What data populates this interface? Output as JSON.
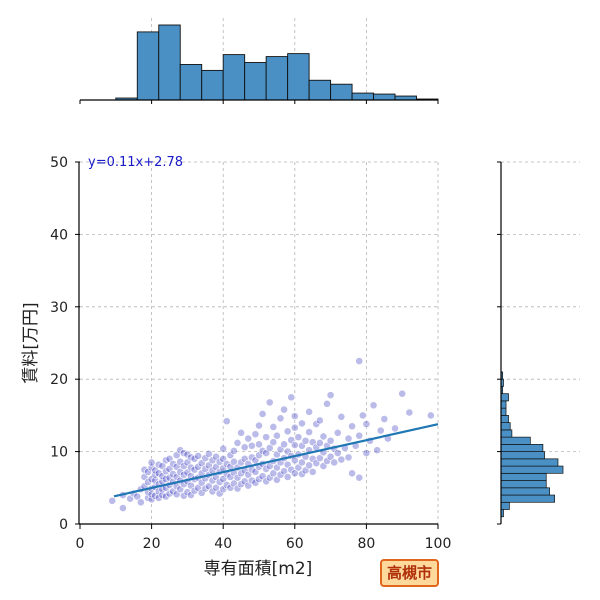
{
  "badge": "高槻市",
  "chart_data": {
    "type": "scatter",
    "xlabel": "専有面積[m2]",
    "ylabel": "賃料[万円]",
    "xlim": [
      0,
      100
    ],
    "ylim": [
      0,
      50
    ],
    "xticks": [
      0,
      20,
      40,
      60,
      80,
      100
    ],
    "yticks": [
      0,
      10,
      20,
      30,
      40,
      50
    ],
    "grid": true,
    "regression": {
      "label": "y=0.11x+2.78",
      "slope": 0.11,
      "intercept": 2.78,
      "x_range": [
        9.5,
        100
      ]
    },
    "colors": {
      "points": "#2b2bbf",
      "fit": "#1f77b4",
      "hist": "#4a90c4"
    },
    "marginal_x_hist": {
      "bin_edges": [
        10,
        16,
        22,
        28,
        34,
        40,
        46,
        52,
        58,
        64,
        70,
        76,
        82,
        88,
        94,
        100
      ],
      "counts": [
        2,
        69,
        76,
        36,
        30,
        46,
        38,
        44,
        47,
        20,
        16,
        7,
        6,
        4,
        1
      ]
    },
    "marginal_y_hist": {
      "bin_edges": [
        1,
        2,
        3,
        4,
        5,
        6,
        7,
        8,
        9,
        10,
        11,
        12,
        13,
        14,
        15,
        16,
        17,
        18,
        19,
        20,
        21,
        22,
        23
      ],
      "counts": [
        3,
        10,
        64,
        58,
        54,
        54,
        74,
        68,
        52,
        50,
        35,
        13,
        11,
        9,
        6,
        6,
        9,
        2,
        3,
        2,
        0,
        0
      ]
    },
    "points": [
      [
        9,
        3.2
      ],
      [
        12,
        2.2
      ],
      [
        12,
        4.0
      ],
      [
        14,
        3.5
      ],
      [
        15,
        4.2
      ],
      [
        16,
        3.8
      ],
      [
        17,
        3.0
      ],
      [
        17,
        4.8
      ],
      [
        18,
        5.2
      ],
      [
        18,
        6.5
      ],
      [
        18,
        7.5
      ],
      [
        19,
        3.6
      ],
      [
        19,
        4.4
      ],
      [
        19,
        5.8
      ],
      [
        19,
        7.2
      ],
      [
        20,
        3.4
      ],
      [
        20,
        4.1
      ],
      [
        20,
        4.9
      ],
      [
        20,
        6.2
      ],
      [
        20,
        7.8
      ],
      [
        20,
        8.5
      ],
      [
        21,
        3.9
      ],
      [
        21,
        5.1
      ],
      [
        21,
        6.0
      ],
      [
        21,
        6.8
      ],
      [
        21,
        7.4
      ],
      [
        22,
        3.6
      ],
      [
        22,
        4.5
      ],
      [
        22,
        5.5
      ],
      [
        22,
        7.0
      ],
      [
        22,
        8.2
      ],
      [
        23,
        4.0
      ],
      [
        23,
        4.8
      ],
      [
        23,
        5.9
      ],
      [
        23,
        6.6
      ],
      [
        23,
        8.0
      ],
      [
        24,
        3.8
      ],
      [
        24,
        5.0
      ],
      [
        24,
        6.2
      ],
      [
        24,
        7.3
      ],
      [
        24,
        8.8
      ],
      [
        25,
        4.2
      ],
      [
        25,
        5.4
      ],
      [
        25,
        6.4
      ],
      [
        25,
        7.6
      ],
      [
        25,
        9.0
      ],
      [
        26,
        4.5
      ],
      [
        26,
        5.8
      ],
      [
        26,
        6.9
      ],
      [
        26,
        8.3
      ],
      [
        27,
        4.1
      ],
      [
        27,
        5.2
      ],
      [
        27,
        6.5
      ],
      [
        27,
        7.9
      ],
      [
        27,
        9.5
      ],
      [
        28,
        4.8
      ],
      [
        28,
        6.0
      ],
      [
        28,
        7.2
      ],
      [
        28,
        8.6
      ],
      [
        28,
        10.2
      ],
      [
        29,
        3.9
      ],
      [
        29,
        5.5
      ],
      [
        29,
        6.8
      ],
      [
        29,
        8.0
      ],
      [
        29,
        9.8
      ],
      [
        30,
        4.4
      ],
      [
        30,
        5.9
      ],
      [
        30,
        7.1
      ],
      [
        30,
        8.5
      ],
      [
        30,
        9.6
      ],
      [
        31,
        4.0
      ],
      [
        31,
        5.3
      ],
      [
        31,
        6.6
      ],
      [
        31,
        7.8
      ],
      [
        31,
        9.2
      ],
      [
        32,
        4.6
      ],
      [
        32,
        6.2
      ],
      [
        32,
        7.5
      ],
      [
        32,
        9.0
      ],
      [
        33,
        5.0
      ],
      [
        33,
        6.4
      ],
      [
        33,
        7.9
      ],
      [
        33,
        9.4
      ],
      [
        34,
        4.3
      ],
      [
        34,
        5.7
      ],
      [
        34,
        7.0
      ],
      [
        34,
        8.4
      ],
      [
        35,
        4.9
      ],
      [
        35,
        6.3
      ],
      [
        35,
        7.6
      ],
      [
        35,
        9.1
      ],
      [
        36,
        5.2
      ],
      [
        36,
        6.8
      ],
      [
        36,
        8.1
      ],
      [
        36,
        9.7
      ],
      [
        37,
        4.5
      ],
      [
        37,
        6.0
      ],
      [
        37,
        7.4
      ],
      [
        37,
        8.8
      ],
      [
        38,
        5.0
      ],
      [
        38,
        6.5
      ],
      [
        38,
        7.9
      ],
      [
        38,
        9.3
      ],
      [
        39,
        4.2
      ],
      [
        39,
        5.8
      ],
      [
        39,
        7.2
      ],
      [
        39,
        8.6
      ],
      [
        40,
        4.8
      ],
      [
        40,
        6.2
      ],
      [
        40,
        7.7
      ],
      [
        40,
        9.0
      ],
      [
        40,
        10.4
      ],
      [
        41,
        5.4
      ],
      [
        41,
        6.9
      ],
      [
        41,
        8.3
      ],
      [
        41,
        14.2
      ],
      [
        42,
        5.0
      ],
      [
        42,
        6.5
      ],
      [
        42,
        7.9
      ],
      [
        42,
        9.5
      ],
      [
        43,
        5.6
      ],
      [
        43,
        7.1
      ],
      [
        43,
        8.6
      ],
      [
        43,
        10.1
      ],
      [
        44,
        4.9
      ],
      [
        44,
        6.4
      ],
      [
        44,
        7.8
      ],
      [
        44,
        11.2
      ],
      [
        45,
        5.5
      ],
      [
        45,
        7.0
      ],
      [
        45,
        8.5
      ],
      [
        45,
        12.6
      ],
      [
        46,
        5.9
      ],
      [
        46,
        7.4
      ],
      [
        46,
        9.0
      ],
      [
        46,
        10.6
      ],
      [
        47,
        5.3
      ],
      [
        47,
        6.8
      ],
      [
        47,
        8.3
      ],
      [
        47,
        11.8
      ],
      [
        48,
        6.0
      ],
      [
        48,
        7.5
      ],
      [
        48,
        9.2
      ],
      [
        48,
        10.8
      ],
      [
        49,
        5.7
      ],
      [
        49,
        7.2
      ],
      [
        49,
        8.8
      ],
      [
        49,
        12.4
      ],
      [
        50,
        6.2
      ],
      [
        50,
        7.9
      ],
      [
        50,
        9.5
      ],
      [
        50,
        11.0
      ],
      [
        50,
        13.6
      ],
      [
        51,
        6.6
      ],
      [
        51,
        8.3
      ],
      [
        51,
        10.1
      ],
      [
        51,
        15.2
      ],
      [
        52,
        5.9
      ],
      [
        52,
        7.6
      ],
      [
        52,
        9.8
      ],
      [
        52,
        12.0
      ],
      [
        53,
        6.4
      ],
      [
        53,
        8.0
      ],
      [
        53,
        10.5
      ],
      [
        53,
        16.8
      ],
      [
        54,
        7.0
      ],
      [
        54,
        8.7
      ],
      [
        54,
        11.3
      ],
      [
        54,
        13.4
      ],
      [
        55,
        6.1
      ],
      [
        55,
        7.8
      ],
      [
        55,
        9.6
      ],
      [
        55,
        12.2
      ],
      [
        56,
        6.8
      ],
      [
        56,
        8.5
      ],
      [
        56,
        10.3
      ],
      [
        56,
        14.6
      ],
      [
        57,
        7.3
      ],
      [
        57,
        9.1
      ],
      [
        57,
        11.0
      ],
      [
        57,
        15.8
      ],
      [
        58,
        6.5
      ],
      [
        58,
        8.2
      ],
      [
        58,
        10.0
      ],
      [
        58,
        12.8
      ],
      [
        59,
        7.5
      ],
      [
        59,
        9.4
      ],
      [
        59,
        11.6
      ],
      [
        59,
        17.5
      ],
      [
        60,
        7.0
      ],
      [
        60,
        8.8
      ],
      [
        60,
        10.9
      ],
      [
        60,
        13.3
      ],
      [
        60,
        14.9
      ],
      [
        61,
        7.8
      ],
      [
        61,
        9.6
      ],
      [
        61,
        12.0
      ],
      [
        62,
        6.9
      ],
      [
        62,
        8.5
      ],
      [
        62,
        10.8
      ],
      [
        62,
        13.9
      ],
      [
        63,
        7.4
      ],
      [
        63,
        9.3
      ],
      [
        63,
        11.5
      ],
      [
        64,
        8.1
      ],
      [
        64,
        10.2
      ],
      [
        64,
        12.7
      ],
      [
        64,
        15.5
      ],
      [
        65,
        7.2
      ],
      [
        65,
        9.0
      ],
      [
        65,
        11.3
      ],
      [
        66,
        8.4
      ],
      [
        66,
        10.6
      ],
      [
        66,
        13.8
      ],
      [
        67,
        9.1
      ],
      [
        67,
        11.2
      ],
      [
        67,
        14.3
      ],
      [
        68,
        8.0
      ],
      [
        68,
        9.9
      ],
      [
        68,
        12.1
      ],
      [
        69,
        8.7
      ],
      [
        69,
        10.8
      ],
      [
        69,
        16.6
      ],
      [
        70,
        9.3
      ],
      [
        70,
        11.5
      ],
      [
        70,
        17.8
      ],
      [
        71,
        8.5
      ],
      [
        71,
        10.4
      ],
      [
        72,
        9.8
      ],
      [
        72,
        12.6
      ],
      [
        73,
        8.9
      ],
      [
        73,
        14.8
      ],
      [
        74,
        10.5
      ],
      [
        75,
        9.2
      ],
      [
        75,
        11.8
      ],
      [
        76,
        7.0
      ],
      [
        76,
        13.5
      ],
      [
        77,
        10.8
      ],
      [
        78,
        6.4
      ],
      [
        78,
        12.2
      ],
      [
        78,
        22.5
      ],
      [
        79,
        15.0
      ],
      [
        80,
        9.8
      ],
      [
        80,
        13.8
      ],
      [
        81,
        11.5
      ],
      [
        82,
        16.4
      ],
      [
        83,
        10.2
      ],
      [
        84,
        12.9
      ],
      [
        85,
        14.5
      ],
      [
        86,
        11.8
      ],
      [
        88,
        13.2
      ],
      [
        90,
        18.0
      ],
      [
        92,
        15.4
      ],
      [
        98,
        15.0
      ]
    ]
  }
}
